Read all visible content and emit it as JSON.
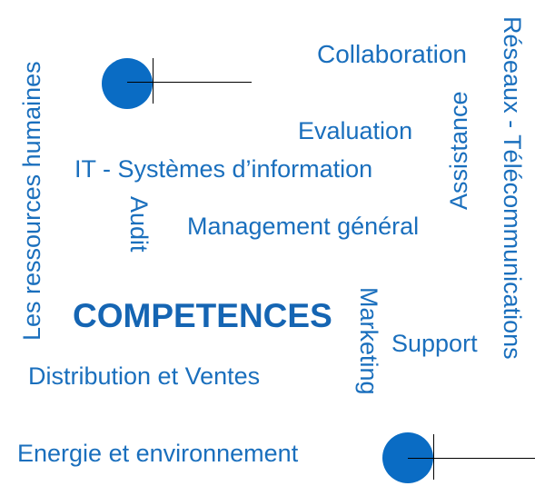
{
  "words": {
    "collaboration": "Collaboration",
    "reseaux": "Réseaux - Télécommunications",
    "ressources": "Les ressources humaines",
    "evaluation": "Evaluation",
    "assistance": "Assistance",
    "it": "IT - Systèmes d’information",
    "audit": "Audit",
    "management": "Management général",
    "competences": "COMPETENCES",
    "marketing": "Marketing",
    "support": "Support",
    "distribution": "Distribution et Ventes",
    "energie": "Energie et environnement"
  },
  "colors": {
    "text": "#1a6fbd",
    "accent": "#0a6cc4"
  }
}
